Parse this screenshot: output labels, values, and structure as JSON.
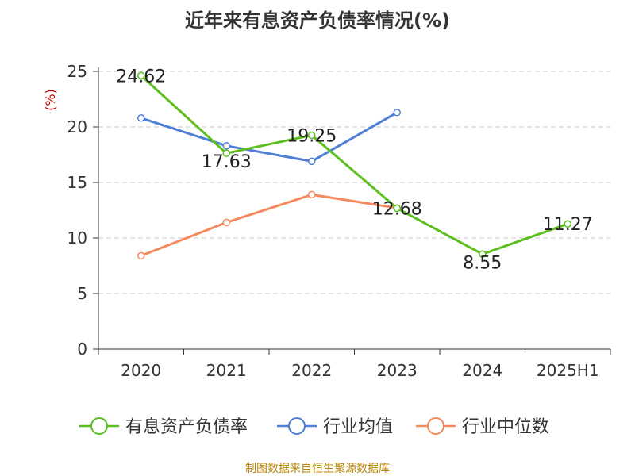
{
  "chart_data": {
    "type": "line",
    "title": "近年来有息资产负债率情况(%)",
    "ylabel": "(%)",
    "xlabel": "",
    "categories": [
      "2020",
      "2021",
      "2022",
      "2023",
      "2024",
      "2025H1"
    ],
    "ylim": [
      0,
      25
    ],
    "yticks": [
      0,
      5,
      10,
      15,
      20,
      25
    ],
    "grid": true,
    "legend_position": "bottom",
    "series": [
      {
        "name": "有息资产负债率",
        "color": "#5cbf1f",
        "values": [
          24.62,
          17.63,
          19.25,
          12.68,
          8.55,
          11.27
        ],
        "labels": [
          "24.62",
          "17.63",
          "19.25",
          "12.68",
          "8.55",
          "11.27"
        ]
      },
      {
        "name": "行业均值",
        "color": "#4f7fd6",
        "values": [
          20.8,
          18.3,
          16.9,
          21.3,
          null,
          null
        ]
      },
      {
        "name": "行业中位数",
        "color": "#f4895f",
        "values": [
          8.4,
          11.4,
          13.9,
          12.7,
          null,
          null
        ]
      }
    ]
  },
  "source_text": "制图数据来自恒生聚源数据库",
  "ylabel_color": "#cc0000"
}
